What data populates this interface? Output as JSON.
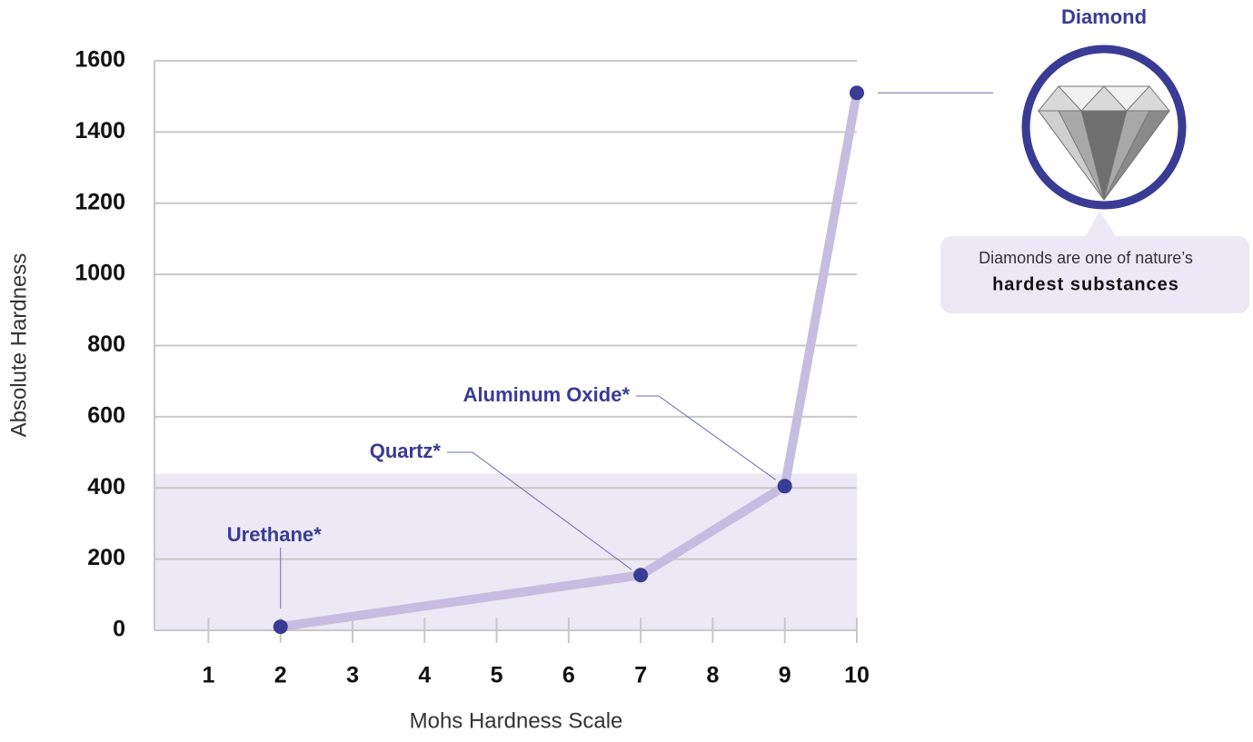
{
  "chart_data": {
    "type": "line",
    "x_label": "Mohs Hardness Scale",
    "y_label": "Absolute Hardness",
    "x": [
      2,
      7,
      9,
      10
    ],
    "values": [
      10,
      155,
      405,
      1510
    ],
    "point_labels": [
      "Urethane*",
      "Quartz*",
      "Aluminum Oxide*",
      "Diamond"
    ],
    "callout": [
      "Diamonds are one of nature’s",
      "hardest substances"
    ],
    "xlim": [
      0.25,
      10
    ],
    "xticks": [
      1,
      2,
      3,
      4,
      5,
      6,
      7,
      8,
      9,
      10
    ],
    "ylim": [
      0,
      1600
    ],
    "yticks": [
      0,
      200,
      400,
      600,
      800,
      1000,
      1200,
      1400,
      1600
    ],
    "shaded_range": [
      0,
      440
    ],
    "grid": true,
    "line_color": "#c6bde0",
    "point_color": "#393b94",
    "shade_color": "#ede8f5"
  }
}
